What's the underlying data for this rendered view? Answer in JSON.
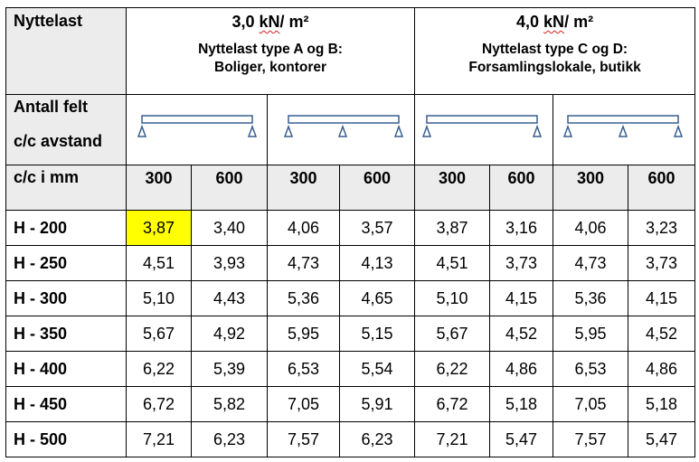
{
  "header": {
    "nyttelast_label": "Nyttelast",
    "load_ab": {
      "value": "3,0 ",
      "unit": "kN",
      "rest": "/ m²",
      "type_line1": "Nyttelast type A og B:",
      "type_line2": "Boliger, kontorer"
    },
    "load_cd": {
      "value": "4,0 ",
      "unit": "kN",
      "rest": "/ m²",
      "type_line1": "Nyttelast type C og D:",
      "type_line2": "Forsamlingslokale, butikk"
    },
    "antall_felt_label": "Antall felt",
    "cc_avstand_label": "c/c avstand",
    "cc_mm_label": "c/c i mm",
    "spacings": [
      "300",
      "600",
      "300",
      "600",
      "300",
      "600",
      "300",
      "600"
    ],
    "beam_icons": [
      "single-span-beam-icon",
      "two-span-beam-icon",
      "single-span-beam-icon",
      "two-span-beam-icon"
    ]
  },
  "rows": [
    {
      "label": "H - 200",
      "values": [
        "3,87",
        "3,40",
        "4,06",
        "3,57",
        "3,87",
        "3,16",
        "4,06",
        "3,23"
      ]
    },
    {
      "label": "H - 250",
      "values": [
        "4,51",
        "3,93",
        "4,73",
        "4,13",
        "4,51",
        "3,73",
        "4,73",
        "3,73"
      ]
    },
    {
      "label": "H - 300",
      "values": [
        "5,10",
        "4,43",
        "5,36",
        "4,65",
        "5,10",
        "4,15",
        "5,36",
        "4,15"
      ]
    },
    {
      "label": "H - 350",
      "values": [
        "5,67",
        "4,92",
        "5,95",
        "5,15",
        "5,67",
        "4,52",
        "5,95",
        "4,52"
      ]
    },
    {
      "label": "H - 400",
      "values": [
        "6,22",
        "5,39",
        "6,53",
        "5,54",
        "6,22",
        "4,86",
        "6,53",
        "4,86"
      ]
    },
    {
      "label": "H - 450",
      "values": [
        "6,72",
        "5,82",
        "7,05",
        "5,91",
        "6,72",
        "5,18",
        "7,05",
        "5,18"
      ]
    },
    {
      "label": "H - 500",
      "values": [
        "7,21",
        "6,23",
        "7,57",
        "6,23",
        "7,21",
        "5,47",
        "7,57",
        "5,47"
      ]
    }
  ],
  "highlight": {
    "row": 0,
    "col": 0,
    "color": "#ffff00"
  },
  "colors": {
    "header_bg": "#ececec",
    "beam_stroke": "#3a5f8f"
  }
}
